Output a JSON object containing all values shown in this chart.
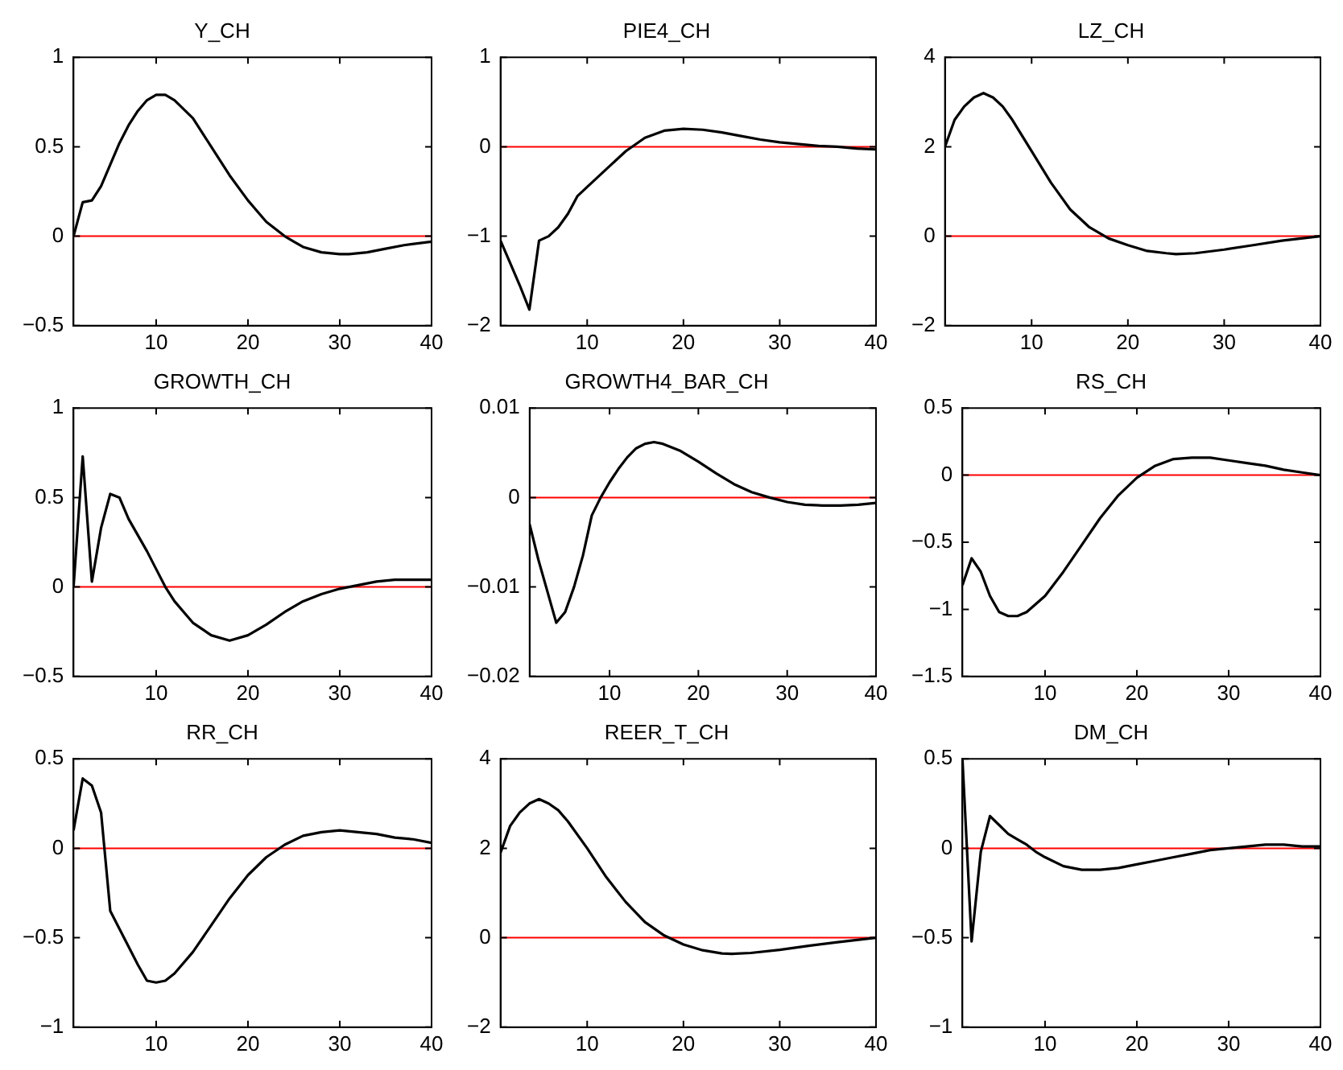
{
  "chart_data": [
    {
      "type": "line",
      "title": "Y_CH",
      "xlim": [
        1,
        40
      ],
      "xticks": [
        10,
        20,
        30,
        40
      ],
      "ylim": [
        -0.5,
        1
      ],
      "yticks": [
        -0.5,
        0,
        0.5,
        1
      ],
      "grid": false,
      "ref_lines": [
        {
          "axis": "y",
          "value": 0,
          "color": "#ff0000"
        }
      ],
      "x": [
        1,
        2,
        3,
        4,
        5,
        6,
        7,
        8,
        9,
        10,
        11,
        12,
        14,
        16,
        18,
        20,
        22,
        24,
        25,
        26,
        28,
        30,
        31,
        33,
        35,
        37,
        40
      ],
      "series": [
        {
          "color": "#000000",
          "values": [
            0,
            0.19,
            0.2,
            0.28,
            0.4,
            0.52,
            0.62,
            0.7,
            0.76,
            0.79,
            0.79,
            0.76,
            0.66,
            0.5,
            0.34,
            0.2,
            0.08,
            0,
            -0.03,
            -0.06,
            -0.09,
            -0.1,
            -0.1,
            -0.09,
            -0.07,
            -0.05,
            -0.03
          ]
        }
      ]
    },
    {
      "type": "line",
      "title": "PIE4_CH",
      "xlim": [
        1,
        40
      ],
      "xticks": [
        10,
        20,
        30,
        40
      ],
      "ylim": [
        -2,
        1
      ],
      "yticks": [
        -2,
        -1,
        0,
        1
      ],
      "grid": false,
      "ref_lines": [
        {
          "axis": "y",
          "value": 0,
          "color": "#ff0000"
        }
      ],
      "x": [
        1,
        2,
        3,
        4,
        5,
        6,
        7,
        8,
        9,
        10,
        12,
        14,
        16,
        18,
        20,
        22,
        24,
        26,
        28,
        30,
        32,
        34,
        36,
        38,
        40
      ],
      "series": [
        {
          "color": "#000000",
          "values": [
            -1.05,
            -1.3,
            -1.55,
            -1.82,
            -1.05,
            -1,
            -0.9,
            -0.75,
            -0.55,
            -0.45,
            -0.25,
            -0.05,
            0.1,
            0.18,
            0.2,
            0.19,
            0.16,
            0.12,
            0.08,
            0.05,
            0.03,
            0.01,
            0,
            -0.02,
            -0.03
          ]
        }
      ]
    },
    {
      "type": "line",
      "title": "LZ_CH",
      "xlim": [
        1,
        40
      ],
      "xticks": [
        10,
        20,
        30,
        40
      ],
      "ylim": [
        -2,
        4
      ],
      "yticks": [
        -2,
        0,
        2,
        4
      ],
      "grid": false,
      "ref_lines": [
        {
          "axis": "y",
          "value": 0,
          "color": "#ff0000"
        }
      ],
      "x": [
        1,
        2,
        3,
        4,
        5,
        6,
        7,
        8,
        10,
        12,
        14,
        16,
        18,
        20,
        22,
        24,
        25,
        27,
        30,
        33,
        36,
        40
      ],
      "series": [
        {
          "color": "#000000",
          "values": [
            2,
            2.6,
            2.9,
            3.1,
            3.2,
            3.1,
            2.9,
            2.6,
            1.9,
            1.2,
            0.6,
            0.2,
            -0.05,
            -0.2,
            -0.33,
            -0.38,
            -0.4,
            -0.38,
            -0.3,
            -0.2,
            -0.1,
            0
          ]
        }
      ]
    },
    {
      "type": "line",
      "title": "GROWTH_CH",
      "xlim": [
        1,
        40
      ],
      "xticks": [
        10,
        20,
        30,
        40
      ],
      "ylim": [
        -0.5,
        1
      ],
      "yticks": [
        -0.5,
        0,
        0.5,
        1
      ],
      "grid": false,
      "ref_lines": [
        {
          "axis": "y",
          "value": 0,
          "color": "#ff0000"
        }
      ],
      "x": [
        1,
        2,
        3,
        4,
        5,
        6,
        7,
        8,
        9,
        10,
        11,
        12,
        14,
        16,
        18,
        20,
        22,
        24,
        26,
        28,
        30,
        32,
        34,
        36,
        40
      ],
      "series": [
        {
          "color": "#000000",
          "values": [
            0,
            0.73,
            0.03,
            0.33,
            0.52,
            0.5,
            0.38,
            0.29,
            0.2,
            0.1,
            0,
            -0.08,
            -0.2,
            -0.27,
            -0.3,
            -0.27,
            -0.21,
            -0.14,
            -0.08,
            -0.04,
            -0.01,
            0.01,
            0.03,
            0.04,
            0.04
          ]
        }
      ]
    },
    {
      "type": "line",
      "title": "GROWTH4_BAR_CH",
      "xlim": [
        1,
        40
      ],
      "xticks": [
        10,
        20,
        30,
        40
      ],
      "ylim": [
        -0.02,
        0.01
      ],
      "yticks": [
        -0.02,
        -0.01,
        0,
        0.01
      ],
      "grid": false,
      "ref_lines": [
        {
          "axis": "y",
          "value": 0,
          "color": "#ff0000"
        }
      ],
      "x": [
        1,
        2,
        3,
        4,
        5,
        6,
        7,
        8,
        9,
        10,
        11,
        12,
        13,
        14,
        15,
        16,
        18,
        20,
        22,
        24,
        26,
        28,
        30,
        32,
        34,
        36,
        38,
        40
      ],
      "series": [
        {
          "color": "#000000",
          "values": [
            -0.003,
            -0.007,
            -0.0105,
            -0.014,
            -0.0128,
            -0.01,
            -0.0065,
            -0.002,
            0,
            0.0017,
            0.0032,
            0.0045,
            0.0055,
            0.006,
            0.0062,
            0.006,
            0.0052,
            0.004,
            0.0027,
            0.0015,
            0.0006,
            0,
            -0.0005,
            -0.0008,
            -0.0009,
            -0.0009,
            -0.0008,
            -0.0006
          ]
        }
      ]
    },
    {
      "type": "line",
      "title": "RS_CH",
      "xlim": [
        1,
        40
      ],
      "xticks": [
        10,
        20,
        30,
        40
      ],
      "ylim": [
        -1.5,
        0.5
      ],
      "yticks": [
        -1.5,
        -1,
        -0.5,
        0,
        0.5
      ],
      "grid": false,
      "ref_lines": [
        {
          "axis": "y",
          "value": 0,
          "color": "#ff0000"
        }
      ],
      "x": [
        1,
        2,
        3,
        4,
        5,
        6,
        7,
        8,
        10,
        12,
        14,
        16,
        18,
        20,
        22,
        24,
        26,
        28,
        30,
        32,
        34,
        36,
        38,
        40
      ],
      "series": [
        {
          "color": "#000000",
          "values": [
            -0.82,
            -0.62,
            -0.72,
            -0.9,
            -1.02,
            -1.05,
            -1.05,
            -1.02,
            -0.9,
            -0.72,
            -0.52,
            -0.32,
            -0.15,
            -0.02,
            0.07,
            0.12,
            0.13,
            0.13,
            0.11,
            0.09,
            0.07,
            0.04,
            0.02,
            0
          ]
        }
      ]
    },
    {
      "type": "line",
      "title": "RR_CH",
      "xlim": [
        1,
        40
      ],
      "xticks": [
        10,
        20,
        30,
        40
      ],
      "ylim": [
        -1,
        0.5
      ],
      "yticks": [
        -1,
        -0.5,
        0,
        0.5
      ],
      "grid": false,
      "ref_lines": [
        {
          "axis": "y",
          "value": 0,
          "color": "#ff0000"
        }
      ],
      "x": [
        1,
        2,
        3,
        4,
        5,
        6,
        7,
        8,
        9,
        10,
        11,
        12,
        14,
        16,
        18,
        20,
        22,
        24,
        26,
        28,
        30,
        32,
        34,
        36,
        38,
        40
      ],
      "series": [
        {
          "color": "#000000",
          "values": [
            0.1,
            0.39,
            0.35,
            0.2,
            -0.35,
            -0.45,
            -0.55,
            -0.65,
            -0.74,
            -0.75,
            -0.74,
            -0.7,
            -0.58,
            -0.43,
            -0.28,
            -0.15,
            -0.05,
            0.02,
            0.07,
            0.09,
            0.1,
            0.09,
            0.08,
            0.06,
            0.05,
            0.03
          ]
        }
      ]
    },
    {
      "type": "line",
      "title": "REER_T_CH",
      "xlim": [
        1,
        40
      ],
      "xticks": [
        10,
        20,
        30,
        40
      ],
      "ylim": [
        -2,
        4
      ],
      "yticks": [
        -2,
        0,
        2,
        4
      ],
      "grid": false,
      "ref_lines": [
        {
          "axis": "y",
          "value": 0,
          "color": "#ff0000"
        }
      ],
      "x": [
        1,
        2,
        3,
        4,
        5,
        6,
        7,
        8,
        10,
        12,
        14,
        16,
        18,
        20,
        22,
        24,
        25,
        27,
        30,
        33,
        36,
        40
      ],
      "series": [
        {
          "color": "#000000",
          "values": [
            1.9,
            2.5,
            2.8,
            3,
            3.1,
            3,
            2.85,
            2.6,
            2,
            1.35,
            0.8,
            0.35,
            0.05,
            -0.15,
            -0.28,
            -0.35,
            -0.36,
            -0.34,
            -0.27,
            -0.18,
            -0.1,
            0
          ]
        }
      ]
    },
    {
      "type": "line",
      "title": "DM_CH",
      "xlim": [
        1,
        40
      ],
      "xticks": [
        10,
        20,
        30,
        40
      ],
      "ylim": [
        -1,
        0.5
      ],
      "yticks": [
        -1,
        -0.5,
        0,
        0.5
      ],
      "grid": false,
      "ref_lines": [
        {
          "axis": "y",
          "value": 0,
          "color": "#ff0000"
        }
      ],
      "x": [
        1,
        2,
        3,
        4,
        5,
        6,
        7,
        8,
        9,
        10,
        12,
        14,
        16,
        18,
        20,
        22,
        24,
        26,
        28,
        30,
        32,
        34,
        36,
        38,
        40
      ],
      "series": [
        {
          "color": "#000000",
          "values": [
            0.5,
            -0.52,
            -0.02,
            0.18,
            0.13,
            0.08,
            0.05,
            0.02,
            -0.02,
            -0.05,
            -0.1,
            -0.12,
            -0.12,
            -0.11,
            -0.09,
            -0.07,
            -0.05,
            -0.03,
            -0.01,
            0,
            0.01,
            0.02,
            0.02,
            0.01,
            0.01
          ]
        }
      ]
    }
  ]
}
